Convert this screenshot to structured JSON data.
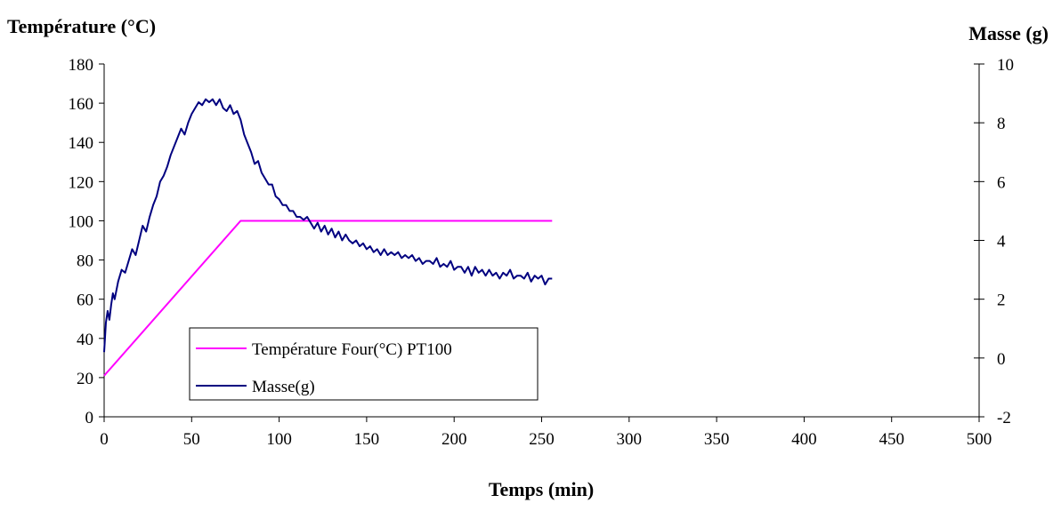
{
  "chart_data": {
    "type": "line",
    "title": "",
    "xlabel": "Temps (min)",
    "ylabel_left": "Température (°C)",
    "ylabel_right": "Masse (g)",
    "xlim": [
      0,
      500
    ],
    "ylim_left": [
      0,
      180
    ],
    "ylim_right": [
      -2,
      10
    ],
    "x_ticks": [
      0,
      50,
      100,
      150,
      200,
      250,
      300,
      350,
      400,
      450,
      500
    ],
    "y_left_ticks": [
      0,
      20,
      40,
      60,
      80,
      100,
      120,
      140,
      160,
      180
    ],
    "y_right_ticks": [
      -2,
      0,
      2,
      4,
      6,
      8,
      10
    ],
    "grid": false,
    "legend_position": "lower-left",
    "series": [
      {
        "name": "Température Four(°C) PT100",
        "axis": "left",
        "color": "#ff00ff",
        "x": [
          0,
          2,
          78,
          80,
          100,
          150,
          200,
          256
        ],
        "y": [
          21,
          23,
          100,
          100,
          100,
          100,
          100,
          100
        ]
      },
      {
        "name": "Masse(g)",
        "axis": "right",
        "color": "#000080",
        "x": [
          0,
          1,
          2,
          3,
          4,
          5,
          6,
          8,
          10,
          12,
          14,
          16,
          18,
          20,
          22,
          24,
          26,
          28,
          30,
          32,
          34,
          36,
          38,
          40,
          42,
          44,
          46,
          48,
          50,
          52,
          54,
          56,
          58,
          60,
          62,
          64,
          66,
          68,
          70,
          72,
          74,
          76,
          78,
          80,
          82,
          84,
          86,
          88,
          90,
          92,
          94,
          96,
          98,
          100,
          102,
          104,
          106,
          108,
          110,
          112,
          114,
          116,
          118,
          120,
          122,
          124,
          126,
          128,
          130,
          132,
          134,
          136,
          138,
          140,
          142,
          144,
          146,
          148,
          150,
          152,
          154,
          156,
          158,
          160,
          162,
          164,
          166,
          168,
          170,
          172,
          174,
          176,
          178,
          180,
          182,
          184,
          186,
          188,
          190,
          192,
          194,
          196,
          198,
          200,
          202,
          204,
          206,
          208,
          210,
          212,
          214,
          216,
          218,
          220,
          222,
          224,
          226,
          228,
          230,
          232,
          234,
          236,
          238,
          240,
          242,
          244,
          246,
          248,
          250,
          252,
          254,
          256
        ],
        "y": [
          0.2,
          1.2,
          1.6,
          1.3,
          1.8,
          2.2,
          2.0,
          2.6,
          3.0,
          2.9,
          3.3,
          3.7,
          3.5,
          4.0,
          4.5,
          4.3,
          4.8,
          5.2,
          5.5,
          6.0,
          6.2,
          6.5,
          6.9,
          7.2,
          7.5,
          7.8,
          7.6,
          8.0,
          8.3,
          8.5,
          8.7,
          8.6,
          8.8,
          8.7,
          8.8,
          8.6,
          8.8,
          8.5,
          8.4,
          8.6,
          8.3,
          8.4,
          8.1,
          7.6,
          7.3,
          7.0,
          6.6,
          6.7,
          6.3,
          6.1,
          5.9,
          5.9,
          5.5,
          5.4,
          5.2,
          5.2,
          5.0,
          5.0,
          4.8,
          4.8,
          4.7,
          4.8,
          4.6,
          4.4,
          4.6,
          4.3,
          4.5,
          4.2,
          4.4,
          4.1,
          4.3,
          4.0,
          4.2,
          4.0,
          3.9,
          4.0,
          3.8,
          3.9,
          3.7,
          3.8,
          3.6,
          3.7,
          3.5,
          3.7,
          3.5,
          3.6,
          3.5,
          3.6,
          3.4,
          3.5,
          3.4,
          3.5,
          3.3,
          3.4,
          3.2,
          3.3,
          3.3,
          3.2,
          3.4,
          3.1,
          3.2,
          3.1,
          3.3,
          3.0,
          3.1,
          3.1,
          2.9,
          3.1,
          2.8,
          3.1,
          2.9,
          3.0,
          2.8,
          3.0,
          2.8,
          2.9,
          2.7,
          2.9,
          2.8,
          3.0,
          2.7,
          2.8,
          2.8,
          2.7,
          2.9,
          2.6,
          2.8,
          2.7,
          2.8,
          2.5,
          2.7,
          2.7
        ]
      }
    ]
  }
}
